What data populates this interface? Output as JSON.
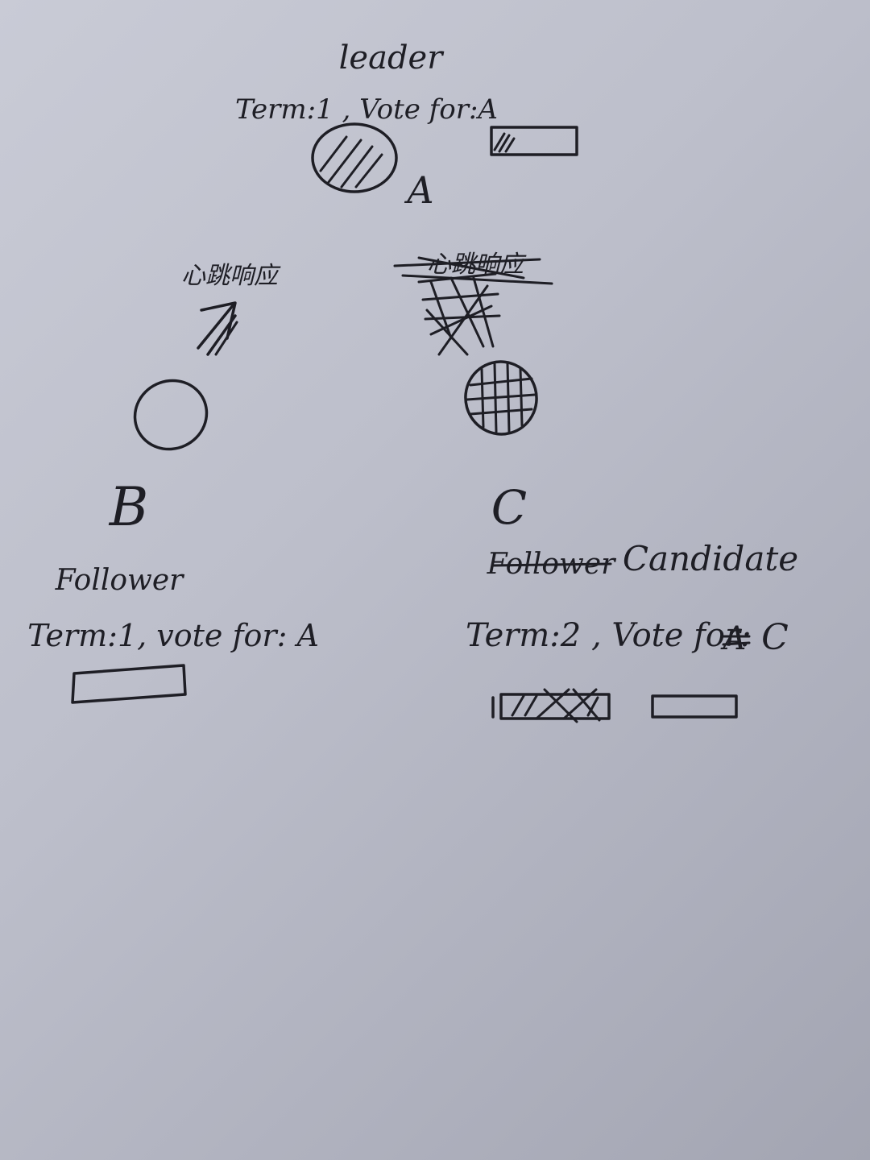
{
  "nodes": {
    "a": {
      "name": "A",
      "role": "leader",
      "state": "Term:1 , Vote for:A"
    },
    "b": {
      "name": "B",
      "role": "Follower",
      "state": "Term:1, vote for: A"
    },
    "c": {
      "name": "C",
      "old_role": "Follower",
      "role": "Candidate",
      "state_prefix": "Term:2 , Vote for:",
      "struck_vote": "A",
      "vote": "C"
    }
  },
  "messages": {
    "heartbeat_reply": "心跳响应",
    "struck_heartbeat_reply": "心跳响应"
  }
}
